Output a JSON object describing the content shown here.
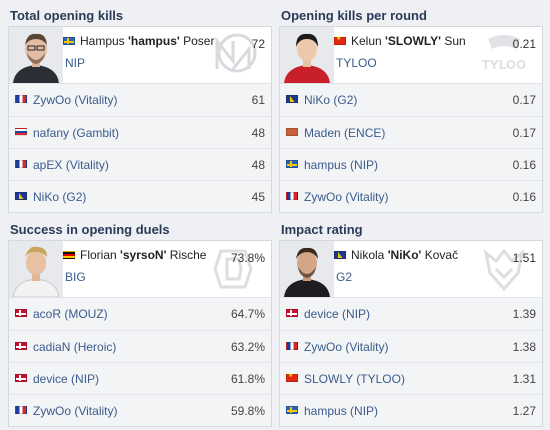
{
  "colors": {
    "link": "#3a5b8c",
    "title": "#2b3a57",
    "row_bg": "#f3f4f6",
    "card_bg": "#ffffff"
  },
  "panels": [
    {
      "title": "Total opening kills",
      "leader": {
        "flag": "se",
        "first": "Hampus",
        "nick": "'hampus'",
        "last": "Poser",
        "team": "NIP",
        "value": "72",
        "watermark": "nip-logo-icon"
      },
      "rows": [
        {
          "flag": "fr",
          "player": "ZywOo",
          "team": "(Vitality)",
          "value": "61"
        },
        {
          "flag": "ru",
          "player": "nafany",
          "team": "(Gambit)",
          "value": "48"
        },
        {
          "flag": "fr",
          "player": "apEX",
          "team": "(Vitality)",
          "value": "48"
        },
        {
          "flag": "ba",
          "player": "NiKo",
          "team": "(G2)",
          "value": "45"
        }
      ]
    },
    {
      "title": "Opening kills per round",
      "leader": {
        "flag": "cn",
        "first": "Kelun",
        "nick": "'SLOWLY'",
        "last": "Sun",
        "team": "TYLOO",
        "value": "0.21",
        "watermark": "tyloo-logo-icon"
      },
      "rows": [
        {
          "flag": "ba",
          "player": "NiKo",
          "team": "(G2)",
          "value": "0.17"
        },
        {
          "flag": "mk",
          "player": "Maden",
          "team": "(ENCE)",
          "value": "0.17"
        },
        {
          "flag": "se",
          "player": "hampus",
          "team": "(NIP)",
          "value": "0.16"
        },
        {
          "flag": "fr",
          "player": "ZywOo",
          "team": "(Vitality)",
          "value": "0.16"
        }
      ]
    },
    {
      "title": "Success in opening duels",
      "leader": {
        "flag": "de",
        "first": "Florian",
        "nick": "'syrsoN'",
        "last": "Rische",
        "team": "BIG",
        "value": "73.8%",
        "watermark": "big-logo-icon"
      },
      "rows": [
        {
          "flag": "dk",
          "player": "acoR",
          "team": "(MOUZ)",
          "value": "64.7%"
        },
        {
          "flag": "dk",
          "player": "cadiaN",
          "team": "(Heroic)",
          "value": "63.2%"
        },
        {
          "flag": "dk",
          "player": "device",
          "team": "(NIP)",
          "value": "61.8%"
        },
        {
          "flag": "fr",
          "player": "ZywOo",
          "team": "(Vitality)",
          "value": "59.8%"
        }
      ]
    },
    {
      "title": "Impact rating",
      "leader": {
        "flag": "ba",
        "first": "Nikola",
        "nick": "'NiKo'",
        "last": "Kovač",
        "team": "G2",
        "value": "1.51",
        "watermark": "g2-logo-icon"
      },
      "rows": [
        {
          "flag": "dk",
          "player": "device",
          "team": "(NIP)",
          "value": "1.39"
        },
        {
          "flag": "fr",
          "player": "ZywOo",
          "team": "(Vitality)",
          "value": "1.38"
        },
        {
          "flag": "cn",
          "player": "SLOWLY",
          "team": "(TYLOO)",
          "value": "1.31"
        },
        {
          "flag": "se",
          "player": "hampus",
          "team": "(NIP)",
          "value": "1.27"
        }
      ]
    }
  ]
}
